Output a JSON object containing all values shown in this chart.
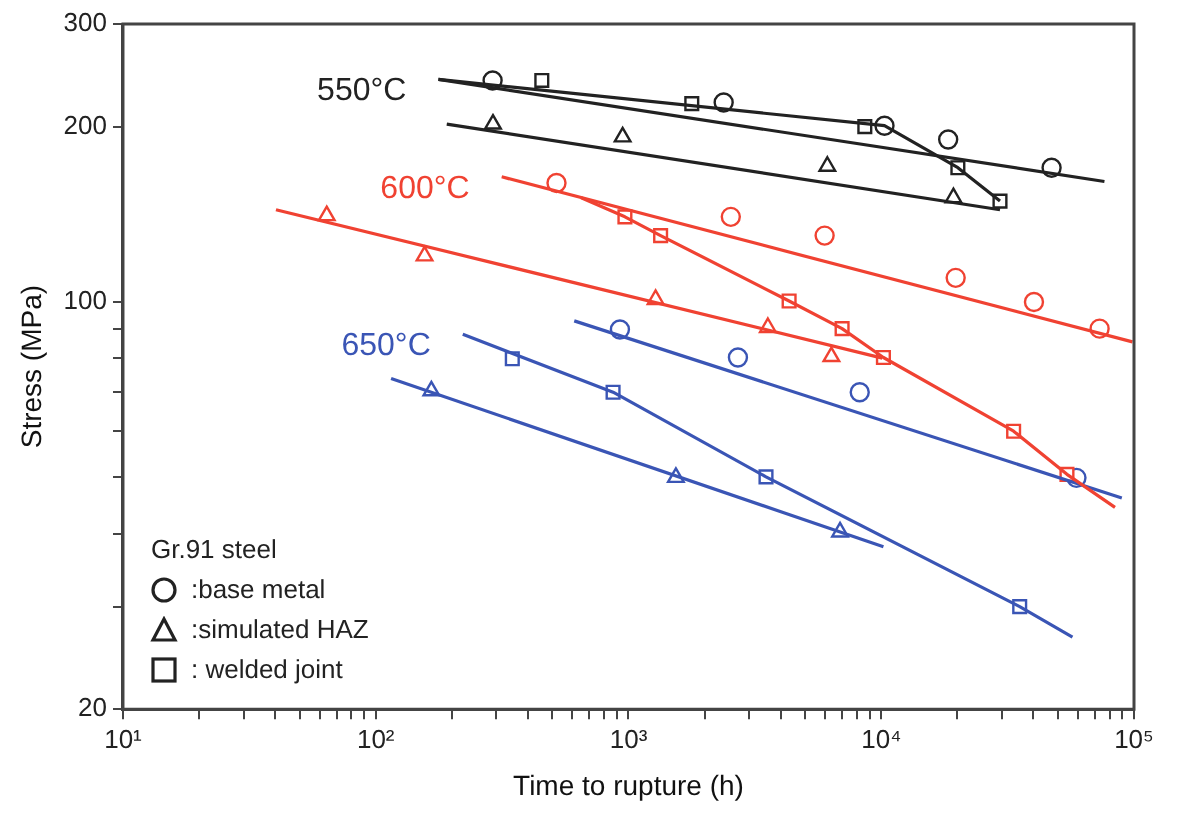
{
  "chart_data": {
    "type": "scatter",
    "xlabel": "Time to rupture (h)",
    "ylabel": "Stress (MPa)",
    "legend_title": "Gr.91 steel",
    "legend": "bottom left",
    "log": "xy",
    "grid": false,
    "xlim": [
      10,
      100000
    ],
    "ylim": [
      20,
      300
    ],
    "xticks": [
      {
        "value": 10,
        "label": "10¹"
      },
      {
        "value": 20,
        "label": null
      },
      {
        "value": 30,
        "label": null
      },
      {
        "value": 40,
        "label": null
      },
      {
        "value": 50,
        "label": null
      },
      {
        "value": 60,
        "label": null
      },
      {
        "value": 70,
        "label": null
      },
      {
        "value": 80,
        "label": null
      },
      {
        "value": 90,
        "label": null
      },
      {
        "value": 100,
        "label": "10²"
      },
      {
        "value": 200,
        "label": null
      },
      {
        "value": 300,
        "label": null
      },
      {
        "value": 400,
        "label": null
      },
      {
        "value": 500,
        "label": null
      },
      {
        "value": 600,
        "label": null
      },
      {
        "value": 700,
        "label": null
      },
      {
        "value": 800,
        "label": null
      },
      {
        "value": 900,
        "label": null
      },
      {
        "value": 1000,
        "label": "10³"
      },
      {
        "value": 2000,
        "label": null
      },
      {
        "value": 3000,
        "label": null
      },
      {
        "value": 4000,
        "label": null
      },
      {
        "value": 5000,
        "label": null
      },
      {
        "value": 6000,
        "label": null
      },
      {
        "value": 7000,
        "label": null
      },
      {
        "value": 8000,
        "label": null
      },
      {
        "value": 9000,
        "label": null
      },
      {
        "value": 10000,
        "label": "10⁴"
      },
      {
        "value": 20000,
        "label": null
      },
      {
        "value": 30000,
        "label": null
      },
      {
        "value": 40000,
        "label": null
      },
      {
        "value": 50000,
        "label": null
      },
      {
        "value": 60000,
        "label": null
      },
      {
        "value": 70000,
        "label": null
      },
      {
        "value": 80000,
        "label": null
      },
      {
        "value": 90000,
        "label": null
      },
      {
        "value": 100000,
        "label": "10⁵"
      }
    ],
    "yticks": [
      20,
      {
        "value": 30,
        "label": null
      },
      {
        "value": 40,
        "label": null
      },
      {
        "value": 50,
        "label": null
      },
      {
        "value": 60,
        "label": null
      },
      {
        "value": 70,
        "label": null
      },
      {
        "value": 80,
        "label": null
      },
      {
        "value": 90,
        "label": null
      },
      100,
      200,
      300
    ],
    "series": [
      {
        "type": "line",
        "name": "550°C",
        "color": "#222222",
        "marker": "none",
        "x": [
          177,
          76400
        ],
        "values": [
          241,
          161
        ]
      },
      {
        "type": "line",
        "color": "#222222",
        "marker": "none",
        "x": [
          177,
          10300,
          20100,
          29500
        ],
        "values": [
          241,
          200.7,
          170,
          149
        ]
      },
      {
        "type": "line",
        "color": "#222222",
        "marker": "none",
        "x": [
          191,
          29500
        ],
        "values": [
          202,
          144
        ]
      },
      {
        "type": "line",
        "name": "600°C",
        "color": "#f04232",
        "marker": "none",
        "x": [
          315,
          98600
        ],
        "values": [
          164,
          85.4
        ]
      },
      {
        "type": "line",
        "color": "#f04232",
        "marker": "none",
        "x": [
          650,
          968,
          1340,
          4320,
          7000,
          10200,
          33400,
          54300,
          84100
        ],
        "values": [
          151,
          140,
          130,
          100.4,
          90,
          80.3,
          60,
          50.6,
          44.4
        ]
      },
      {
        "type": "line",
        "color": "#f04232",
        "marker": "none",
        "x": [
          40.3,
          10100
        ],
        "values": [
          144,
          80.1
        ]
      },
      {
        "type": "line",
        "color": "#3a55b5",
        "marker": "none",
        "x": [
          610,
          89500
        ],
        "values": [
          92.8,
          46.1
        ]
      },
      {
        "type": "line",
        "name": "650°C",
        "color": "#3a55b5",
        "marker": "none",
        "x": [
          221,
          869,
          3500,
          35300,
          57100
        ],
        "values": [
          88,
          70,
          50.1,
          30,
          26.6
        ]
      },
      {
        "type": "line",
        "color": "#3a55b5",
        "marker": "none",
        "x": [
          115,
          10200
        ],
        "values": [
          73.9,
          38
        ]
      },
      {
        "type": "scatter",
        "name": ":base metal",
        "color": "#222222",
        "marker": "circle",
        "x": [
          290,
          2380,
          10300,
          18400,
          47200
        ],
        "values": [
          240,
          220,
          200.7,
          190,
          170
        ]
      },
      {
        "type": "scatter",
        "name": ":simulated HAZ",
        "color": "#222222",
        "marker": "triangle",
        "x": [
          291,
          948,
          6120,
          19300
        ],
        "values": [
          202,
          192,
          171,
          151
        ]
      },
      {
        "type": "scatter",
        "name": ": welded joint",
        "color": "#222222",
        "marker": "square",
        "x": [
          454,
          1780,
          8610,
          20100,
          29500
        ],
        "values": [
          240,
          219,
          200,
          170,
          149
        ]
      },
      {
        "type": "scatter",
        "color": "#f04232",
        "marker": "circle",
        "x": [
          519,
          2540,
          5970,
          19700,
          40200,
          73100
        ],
        "values": [
          160,
          140,
          130,
          110,
          100,
          90
        ]
      },
      {
        "type": "scatter",
        "color": "#f04232",
        "marker": "triangle",
        "x": [
          64,
          156,
          1280,
          3560,
          6350
        ],
        "values": [
          140.7,
          120,
          101,
          90.4,
          80.6
        ]
      },
      {
        "type": "scatter",
        "color": "#f04232",
        "marker": "square",
        "x": [
          968,
          1340,
          4320,
          7000,
          10200,
          33400,
          54300
        ],
        "values": [
          140,
          130,
          100.4,
          90,
          80.3,
          60,
          50.6
        ]
      },
      {
        "type": "scatter",
        "color": "#3a55b5",
        "marker": "circle",
        "x": [
          925,
          2710,
          8220,
          59200
        ],
        "values": [
          89.7,
          80.3,
          70,
          49.9
        ]
      },
      {
        "type": "scatter",
        "color": "#3a55b5",
        "marker": "triangle",
        "x": [
          166,
          1540,
          6870
        ],
        "values": [
          70.4,
          50,
          40.3
        ]
      },
      {
        "type": "scatter",
        "color": "#3a55b5",
        "marker": "square",
        "x": [
          347,
          869,
          3500,
          35300
        ],
        "values": [
          79.9,
          70,
          50.1,
          30
        ]
      }
    ]
  }
}
